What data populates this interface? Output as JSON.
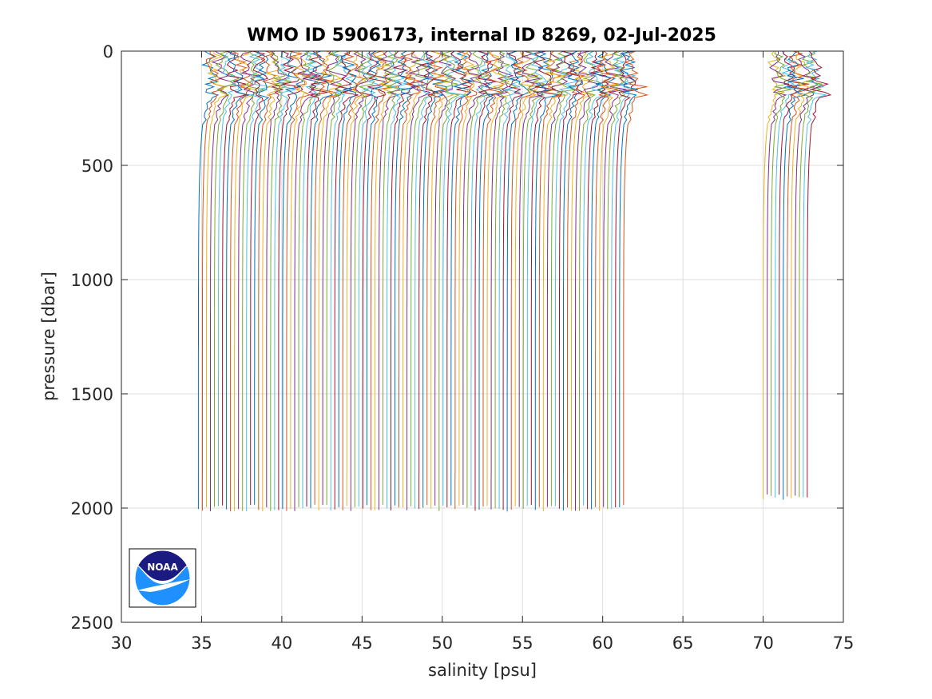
{
  "chart_data": {
    "type": "line",
    "title": "WMO ID 5906173, internal ID 8269, 02-Jul-2025",
    "xlabel": "salinity [psu]",
    "ylabel": "pressure [dbar]",
    "xlim": [
      30,
      75
    ],
    "ylim": [
      0,
      2500
    ],
    "y_reversed": true,
    "grid": true,
    "x_ticks": [
      "30",
      "35",
      "40",
      "45",
      "50",
      "55",
      "60",
      "65",
      "70",
      "75"
    ],
    "y_ticks": [
      "0",
      "500",
      "1000",
      "1500",
      "2000",
      "2500"
    ],
    "profile_style": "waterfall: each successive profile offset by +0.25 psu",
    "profile_groups": [
      {
        "name": "",
        "count": 107,
        "first_deep_salinity": 34.8,
        "offset_step": 0.25,
        "max_pressure": 2000
      },
      {
        "name": "",
        "count": 12,
        "first_deep_salinity": 70.0,
        "offset_step": 0.25,
        "max_pressure": 1950
      }
    ],
    "colors": [
      "#0072BD",
      "#D95319",
      "#EDB120",
      "#7E2F8E",
      "#77AC30",
      "#4DBEEE",
      "#A2142F"
    ]
  },
  "logo": {
    "text": "NOAA",
    "dark": "#1A1A80",
    "light": "#1E90FF"
  }
}
